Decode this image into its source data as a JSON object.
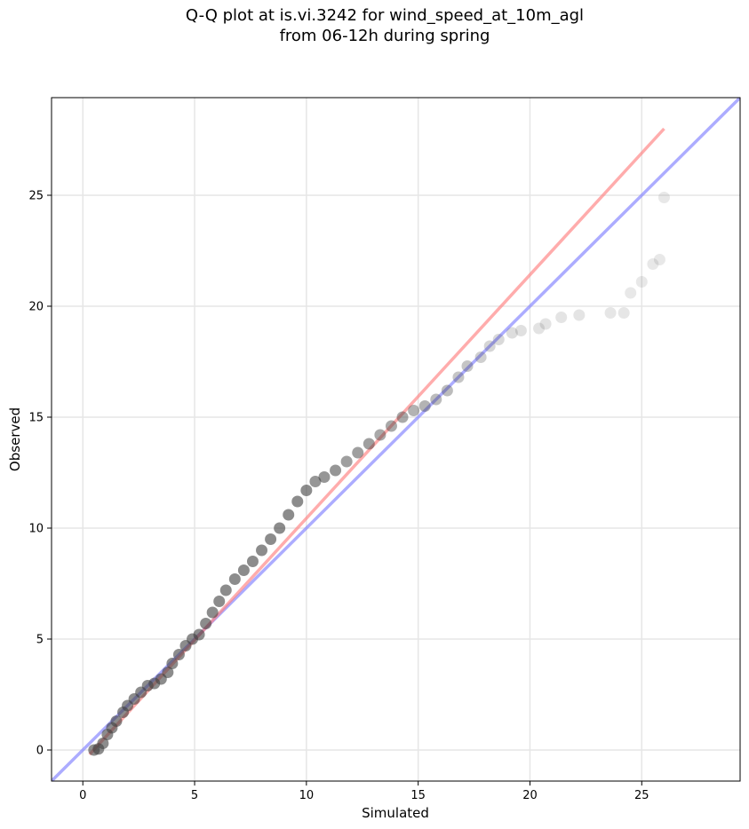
{
  "chart_data": {
    "type": "scatter",
    "title_line1": "Q-Q plot at is.vi.3242 for wind_speed_at_10m_agl",
    "title_line2": "from 06-12h during spring",
    "xlabel": "Simulated",
    "ylabel": "Observed",
    "xlim": [
      -1.4,
      29.4
    ],
    "ylim": [
      -1.4,
      29.4
    ],
    "xticks": [
      0,
      5,
      10,
      15,
      20,
      25
    ],
    "yticks": [
      0,
      5,
      10,
      15,
      20,
      25
    ],
    "grid": true,
    "reference_lines": [
      {
        "color": "#8080ff",
        "x": [
          -1.4,
          29.4
        ],
        "y": [
          -1.4,
          29.4
        ]
      },
      {
        "color": "#ff8080",
        "x": [
          0.3,
          26.0
        ],
        "y": [
          -0.2,
          28.0
        ]
      }
    ],
    "points": {
      "color": "#404040",
      "x": [
        0.5,
        0.7,
        0.9,
        1.1,
        1.3,
        1.5,
        1.8,
        2.0,
        2.3,
        2.6,
        2.9,
        3.2,
        3.5,
        3.8,
        4.0,
        4.3,
        4.6,
        4.9,
        5.2,
        5.5,
        5.8,
        6.1,
        6.4,
        6.8,
        7.2,
        7.6,
        8.0,
        8.4,
        8.8,
        9.2,
        9.6,
        10.0,
        10.4,
        10.8,
        11.3,
        11.8,
        12.3,
        12.8,
        13.3,
        13.8,
        14.3,
        14.8,
        15.3,
        15.8,
        16.3,
        16.8,
        17.2,
        17.8,
        18.2,
        18.6,
        19.2,
        19.6,
        20.4,
        20.7,
        21.4,
        22.2,
        23.6,
        24.2,
        24.5,
        25.0,
        25.5,
        25.8,
        26.0
      ],
      "y": [
        0.0,
        0.05,
        0.3,
        0.7,
        1.0,
        1.3,
        1.7,
        2.0,
        2.3,
        2.6,
        2.9,
        3.0,
        3.2,
        3.5,
        3.9,
        4.3,
        4.7,
        5.0,
        5.2,
        5.7,
        6.2,
        6.7,
        7.2,
        7.7,
        8.1,
        8.5,
        9.0,
        9.5,
        10.0,
        10.6,
        11.2,
        11.7,
        12.1,
        12.3,
        12.6,
        13.0,
        13.4,
        13.8,
        14.2,
        14.6,
        15.0,
        15.3,
        15.5,
        15.8,
        16.2,
        16.8,
        17.3,
        17.7,
        18.2,
        18.5,
        18.8,
        18.9,
        19.0,
        19.2,
        19.5,
        19.6,
        19.7,
        19.7,
        20.6,
        21.1,
        21.9,
        22.1,
        24.9
      ],
      "alpha": [
        0.6,
        0.6,
        0.6,
        0.6,
        0.6,
        0.6,
        0.6,
        0.6,
        0.6,
        0.6,
        0.6,
        0.6,
        0.6,
        0.6,
        0.6,
        0.6,
        0.6,
        0.6,
        0.6,
        0.6,
        0.6,
        0.6,
        0.6,
        0.6,
        0.6,
        0.6,
        0.6,
        0.6,
        0.6,
        0.6,
        0.6,
        0.6,
        0.55,
        0.55,
        0.55,
        0.5,
        0.5,
        0.5,
        0.45,
        0.45,
        0.45,
        0.4,
        0.4,
        0.35,
        0.35,
        0.3,
        0.3,
        0.25,
        0.22,
        0.2,
        0.18,
        0.16,
        0.15,
        0.15,
        0.14,
        0.14,
        0.13,
        0.13,
        0.12,
        0.12,
        0.12,
        0.12,
        0.12
      ]
    }
  }
}
